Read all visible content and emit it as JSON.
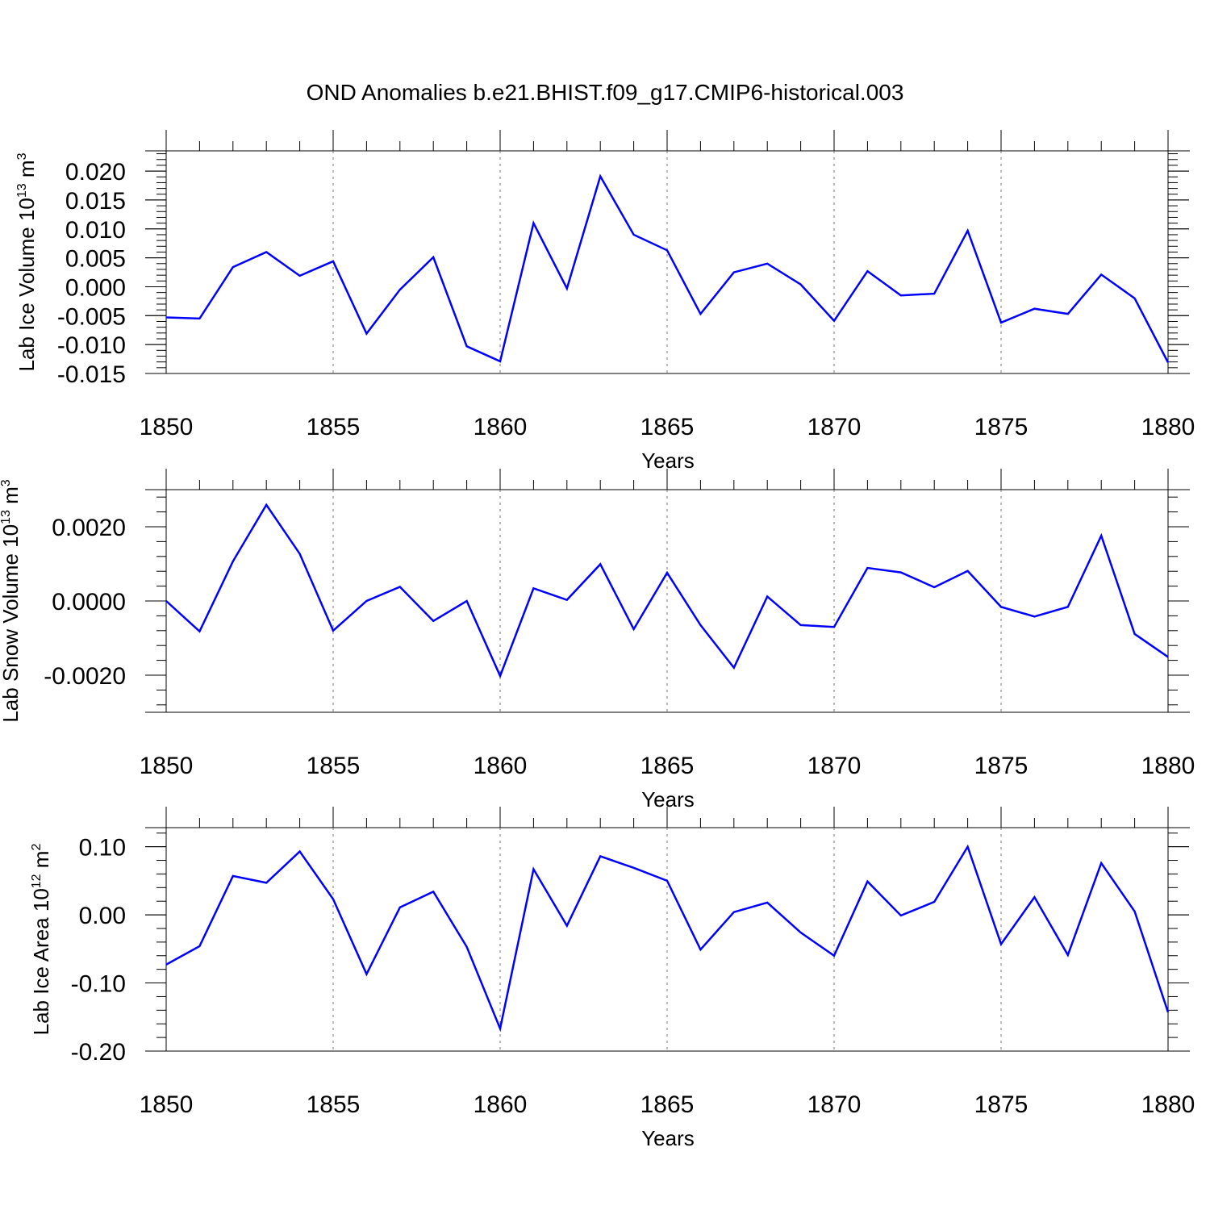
{
  "page_title": "OND Anomalies b.e21.BHIST.f09_g17.CMIP6-historical.003",
  "colors": {
    "series": "#0000ff",
    "frame": "#000000",
    "grid": "#777777"
  },
  "chart_data": [
    {
      "type": "line",
      "title": "",
      "xlabel": "Years",
      "ylabel": "Lab Ice Volume",
      "ylabel_unit_base": "10",
      "ylabel_unit_exp": "13",
      "ylabel_unit_tail": "m",
      "ylabel_unit_tail_exp": "3",
      "xlim": [
        1850,
        1880
      ],
      "ylim": [
        -0.015,
        0.0235
      ],
      "x_ticks": [
        "1850",
        "1855",
        "1860",
        "1865",
        "1870",
        "1875",
        "1880"
      ],
      "y_ticks": [
        "0.020",
        "0.015",
        "0.010",
        "0.005",
        "0.000",
        "-0.005",
        "-0.010",
        "-0.015"
      ],
      "grid": "dashed vertical at major x ticks",
      "series": [
        {
          "x": [
            1850,
            1851,
            1852,
            1853,
            1854,
            1855,
            1856,
            1857,
            1858,
            1859,
            1860,
            1861,
            1862,
            1863,
            1864,
            1865,
            1866,
            1867,
            1868,
            1869,
            1870,
            1871,
            1872,
            1873,
            1874,
            1875,
            1876,
            1877,
            1878,
            1879,
            1880
          ],
          "values": [
            -0.0053,
            -0.0055,
            0.0034,
            0.006,
            0.0019,
            0.0044,
            -0.0081,
            -0.0005,
            0.0051,
            -0.0103,
            -0.0129,
            0.011,
            -0.0003,
            0.0191,
            0.009,
            0.0063,
            -0.0047,
            0.0025,
            0.004,
            0.0004,
            -0.0059,
            0.0027,
            -0.0015,
            -0.0012,
            0.0097,
            -0.0062,
            -0.0038,
            -0.0047,
            0.0021,
            -0.002,
            -0.0131
          ]
        }
      ]
    },
    {
      "type": "line",
      "title": "",
      "xlabel": "Years",
      "ylabel": "Lab Snow Volume",
      "ylabel_unit_base": "10",
      "ylabel_unit_exp": "13",
      "ylabel_unit_tail": "m",
      "ylabel_unit_tail_exp": "3",
      "xlim": [
        1850,
        1880
      ],
      "ylim": [
        -0.003,
        0.003
      ],
      "x_ticks": [
        "1850",
        "1855",
        "1860",
        "1865",
        "1870",
        "1875",
        "1880"
      ],
      "y_ticks": [
        "0.0020",
        "0.0000",
        "-0.0020"
      ],
      "grid": "dashed vertical at major x ticks",
      "series": [
        {
          "x": [
            1850,
            1851,
            1852,
            1853,
            1854,
            1855,
            1856,
            1857,
            1858,
            1859,
            1860,
            1861,
            1862,
            1863,
            1864,
            1865,
            1866,
            1867,
            1868,
            1869,
            1870,
            1871,
            1872,
            1873,
            1874,
            1875,
            1876,
            1877,
            1878,
            1879,
            1880
          ],
          "values": [
            0.0,
            -0.00082,
            0.00107,
            0.00259,
            0.00127,
            -0.0008,
            0.0,
            0.00038,
            -0.00054,
            0.0,
            -0.00202,
            0.00034,
            3e-05,
            0.00099,
            -0.00076,
            0.00076,
            -0.00065,
            -0.0018,
            0.00012,
            -0.00065,
            -0.0007,
            0.00089,
            0.00077,
            0.00037,
            0.00081,
            -0.00016,
            -0.00042,
            -0.00016,
            0.00176,
            -0.00089,
            -0.00151
          ]
        }
      ]
    },
    {
      "type": "line",
      "title": "",
      "xlabel": "Years",
      "ylabel": "Lab Ice Area",
      "ylabel_unit_base": "10",
      "ylabel_unit_exp": "12",
      "ylabel_unit_tail": "m",
      "ylabel_unit_tail_exp": "2",
      "xlim": [
        1850,
        1880
      ],
      "ylim": [
        -0.2,
        0.128
      ],
      "x_ticks": [
        "1850",
        "1855",
        "1860",
        "1865",
        "1870",
        "1875",
        "1880"
      ],
      "y_ticks": [
        "0.10",
        "0.00",
        "-0.10",
        "-0.20"
      ],
      "grid": "dashed vertical at major x ticks",
      "series": [
        {
          "x": [
            1850,
            1851,
            1852,
            1853,
            1854,
            1855,
            1856,
            1857,
            1858,
            1859,
            1860,
            1861,
            1862,
            1863,
            1864,
            1865,
            1866,
            1867,
            1868,
            1869,
            1870,
            1871,
            1872,
            1873,
            1874,
            1875,
            1876,
            1877,
            1878,
            1879,
            1880
          ],
          "values": [
            -0.073,
            -0.046,
            0.057,
            0.047,
            0.093,
            0.023,
            -0.087,
            0.011,
            0.034,
            -0.047,
            -0.167,
            0.067,
            -0.016,
            0.086,
            0.069,
            0.05,
            -0.051,
            0.004,
            0.018,
            -0.026,
            -0.06,
            0.049,
            -0.001,
            0.019,
            0.1,
            -0.043,
            0.026,
            -0.059,
            0.076,
            0.005,
            -0.143
          ]
        }
      ]
    }
  ]
}
